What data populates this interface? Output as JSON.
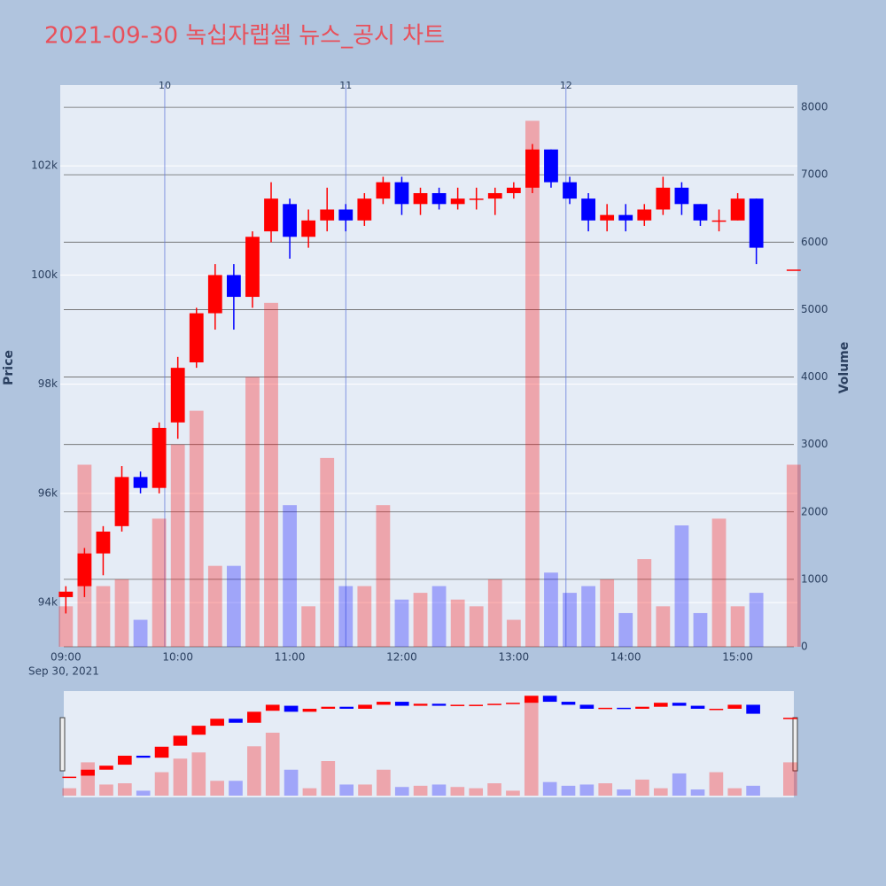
{
  "chart_data": {
    "type": "candlestick",
    "title": "2021-09-30 녹십자랩셀 뉴스_공시 차트",
    "y_label": "Price",
    "y2_label": "Volume",
    "date_label": "Sep 30, 2021",
    "x": [
      "09:00",
      "09:10",
      "09:20",
      "09:30",
      "09:40",
      "09:50",
      "10:00",
      "10:10",
      "10:20",
      "10:30",
      "10:40",
      "10:50",
      "11:00",
      "11:10",
      "11:20",
      "11:30",
      "11:40",
      "11:50",
      "12:00",
      "12:10",
      "12:20",
      "12:30",
      "12:40",
      "12:50",
      "13:00",
      "13:10",
      "13:20",
      "13:30",
      "13:40",
      "13:50",
      "14:00",
      "14:10",
      "14:20",
      "14:30",
      "14:40",
      "14:50",
      "15:00",
      "15:10",
      "15:30"
    ],
    "open": [
      94100,
      94300,
      94900,
      95400,
      96300,
      96100,
      97300,
      98400,
      99300,
      100000,
      99600,
      100800,
      101300,
      100700,
      101000,
      101200,
      101000,
      101400,
      101700,
      101300,
      101500,
      101300,
      101400,
      101400,
      101500,
      101600,
      102300,
      101700,
      101400,
      101000,
      101100,
      101000,
      101200,
      101600,
      101300,
      101000,
      101000,
      101400,
      100100
    ],
    "high": [
      94300,
      95000,
      95400,
      96500,
      96400,
      97300,
      98500,
      99400,
      100200,
      100200,
      100800,
      101700,
      101400,
      101200,
      101600,
      101300,
      101500,
      101800,
      101800,
      101600,
      101600,
      101600,
      101600,
      101600,
      101700,
      102400,
      102300,
      101800,
      101500,
      101300,
      101300,
      101300,
      101800,
      101700,
      101300,
      101200,
      101500,
      101400,
      100100
    ],
    "low": [
      93800,
      94100,
      94500,
      95300,
      96000,
      96000,
      97000,
      98300,
      99000,
      99000,
      99400,
      100600,
      100300,
      100500,
      100800,
      100800,
      100900,
      101300,
      101100,
      101100,
      101200,
      101200,
      101200,
      101100,
      101400,
      101500,
      101600,
      101300,
      100800,
      100800,
      100800,
      100900,
      101100,
      101100,
      100900,
      100800,
      101000,
      100200,
      100100
    ],
    "close": [
      94200,
      94900,
      95300,
      96300,
      96100,
      97200,
      98300,
      99300,
      100000,
      99600,
      100700,
      101400,
      100700,
      101000,
      101200,
      101000,
      101400,
      101700,
      101300,
      101500,
      101300,
      101400,
      101400,
      101500,
      101600,
      102300,
      101700,
      101400,
      101000,
      101100,
      101000,
      101200,
      101600,
      101300,
      101000,
      101000,
      101400,
      100500,
      100100
    ],
    "volume": [
      600,
      2700,
      900,
      1000,
      400,
      1900,
      3000,
      3500,
      1200,
      1200,
      4000,
      5100,
      2100,
      600,
      2800,
      900,
      900,
      2100,
      700,
      800,
      900,
      700,
      600,
      1000,
      400,
      7800,
      1100,
      800,
      900,
      1000,
      500,
      1300,
      600,
      1800,
      500,
      1900,
      600,
      800,
      2700
    ],
    "up_color": "#ff0000",
    "down_color": "#0000ff",
    "annotations": [
      {
        "x": "09:53",
        "label": "10"
      },
      {
        "x": "11:30",
        "label": "11"
      },
      {
        "x": "13:28",
        "label": "12"
      }
    ],
    "xlim": [
      "08:57",
      "15:32"
    ],
    "xticks": [
      "09:00",
      "10:00",
      "11:00",
      "12:00",
      "13:00",
      "14:00",
      "15:00"
    ],
    "ylim": [
      93190,
      103480
    ],
    "yticks": [
      {
        "value": 94000,
        "label": "94k"
      },
      {
        "value": 96000,
        "label": "96k"
      },
      {
        "value": 98000,
        "label": "98k"
      },
      {
        "value": 100000,
        "label": "100k"
      },
      {
        "value": 102000,
        "label": "102k"
      }
    ],
    "y2lim": [
      0,
      8330
    ],
    "y2ticks": [
      0,
      1000,
      2000,
      3000,
      4000,
      5000,
      6000,
      7000,
      8000
    ],
    "grid": true,
    "rangeslider": true
  }
}
